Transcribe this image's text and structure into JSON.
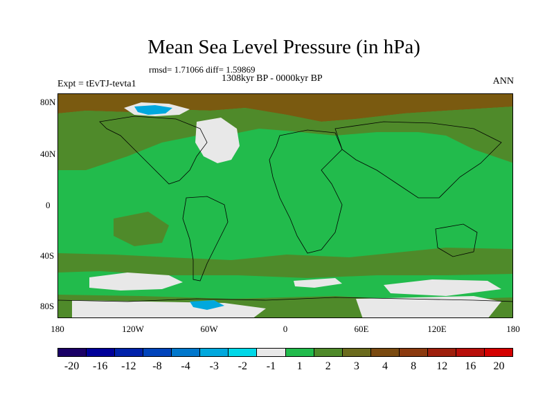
{
  "title": "Mean Sea Level Pressure (in hPa)",
  "stats": "rmsd= 1.71066 diff= 1.59869",
  "period": "1308kyr BP - 0000kyr BP",
  "experiment": "Expt = tEvTJ-tevta1",
  "season": "ANN",
  "lat_labels": [
    "80N",
    "40N",
    "0",
    "40S",
    "80S"
  ],
  "lon_labels": [
    "180",
    "120W",
    "60W",
    "0",
    "60E",
    "120E",
    "180"
  ],
  "colorbar": {
    "colors": [
      "#1a0066",
      "#000099",
      "#0022aa",
      "#0044bb",
      "#0077cc",
      "#00a8dd",
      "#00d8e8",
      "#e8e8e8",
      "#22bb4c",
      "#4f8a2a",
      "#6b6b1d",
      "#7a4a10",
      "#8b3a0f",
      "#9e1f0c",
      "#b80f0a",
      "#d40000"
    ],
    "labels": [
      "-20",
      "-16",
      "-12",
      "-8",
      "-4",
      "-3",
      "-2",
      "-1",
      "1",
      "2",
      "3",
      "4",
      "8",
      "12",
      "16",
      "20"
    ]
  },
  "map_colors": {
    "ocean_default": "#22bb4c",
    "positive_moderate": "#4f8a2a",
    "positive_high": "#7a5a10",
    "near_zero": "#e8e8e8",
    "negative": "#00a8dd"
  }
}
